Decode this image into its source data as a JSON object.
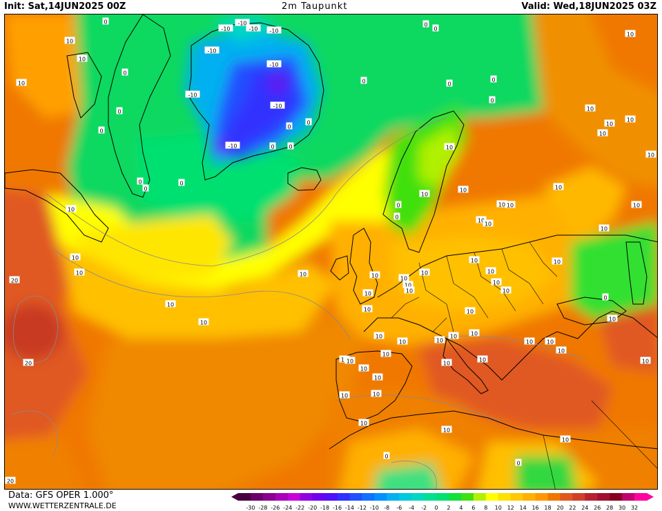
{
  "header": {
    "init": "Init: Sat,14JUN2025 00Z",
    "title": "2m Taupunkt",
    "valid": "Valid: Wed,18JUN2025 03Z"
  },
  "footer": {
    "source": "Data: GFS OPER 1.000°",
    "site": "WWW.WETTERZENTRALE.DE"
  },
  "legend": {
    "ticks": [
      "-30",
      "-28",
      "-26",
      "-24",
      "-22",
      "-20",
      "-18",
      "-16",
      "-14",
      "-12",
      "-10",
      "-8",
      "-6",
      "-4",
      "-2",
      "0",
      "2",
      "4",
      "6",
      "8",
      "10",
      "12",
      "14",
      "16",
      "18",
      "20",
      "22",
      "24",
      "26",
      "28",
      "30",
      "32"
    ],
    "colors": [
      "#4a0040",
      "#6a006a",
      "#8a0090",
      "#a800b8",
      "#c800d8",
      "#9000e0",
      "#7000f0",
      "#5010f8",
      "#3030ff",
      "#2050ff",
      "#1070ff",
      "#0090ff",
      "#00b0f0",
      "#00c8e0",
      "#00d8c0",
      "#00e090",
      "#00e070",
      "#10e040",
      "#40e010",
      "#b0f000",
      "#ffff00",
      "#ffe000",
      "#ffc800",
      "#ffb000",
      "#ff9800",
      "#f07800",
      "#e05820",
      "#d04028",
      "#b82030",
      "#a01030",
      "#880020",
      "#c00070",
      "#ff00a0"
    ]
  },
  "map_labels": {
    "greenland_minus": [
      "-10",
      "-10",
      "-10",
      "-10",
      "-10",
      "-10",
      "-10",
      "-10",
      "-10"
    ],
    "zero": [
      "0",
      "0",
      "0",
      "0",
      "0",
      "0",
      "0",
      "0",
      "0",
      "0",
      "0",
      "0",
      "0",
      "0",
      "0",
      "0",
      "0",
      "0",
      "0",
      "0",
      "0",
      "0"
    ],
    "ten": [
      "10",
      "10",
      "10",
      "10",
      "10",
      "10",
      "10",
      "10",
      "10",
      "10",
      "10",
      "10",
      "10",
      "10",
      "10",
      "10",
      "10",
      "10",
      "10",
      "10",
      "10",
      "10",
      "10",
      "10",
      "10",
      "10",
      "10",
      "10",
      "10",
      "10",
      "10",
      "10",
      "10",
      "10",
      "10",
      "10",
      "10",
      "10",
      "10",
      "10",
      "10",
      "10",
      "10",
      "10",
      "10",
      "10",
      "10",
      "10",
      "10",
      "10",
      "10",
      "10",
      "10",
      "10",
      "10",
      "10",
      "10",
      "10",
      "10",
      "10"
    ],
    "twenty": [
      "20",
      "20",
      "20"
    ]
  }
}
